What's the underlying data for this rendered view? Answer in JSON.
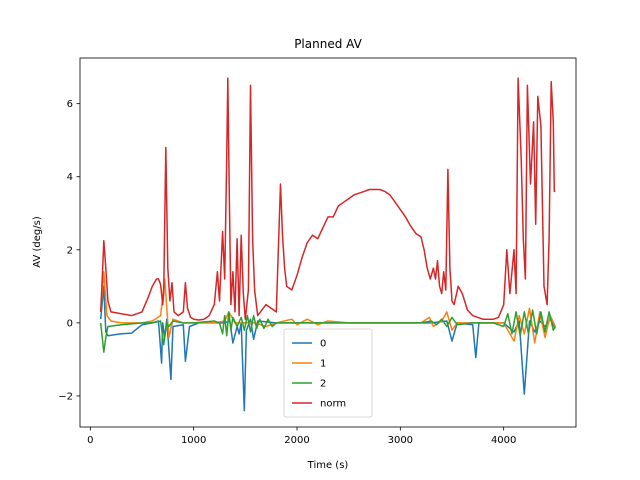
{
  "chart_data": {
    "type": "line",
    "title": "Planned AV",
    "xlabel": "Time (s)",
    "ylabel": "AV (deg/s)",
    "xlim": [
      -100,
      4700
    ],
    "ylim": [
      -2.85,
      7.25
    ],
    "xticks": [
      0,
      1000,
      2000,
      3000,
      4000
    ],
    "yticks": [
      -2,
      0,
      2,
      4,
      6
    ],
    "grid": false,
    "legend_position": "lower center",
    "series": [
      {
        "name": "0",
        "color": "#1f77b4",
        "points": [
          [
            100,
            0.1
          ],
          [
            130,
            1.0
          ],
          [
            150,
            -0.25
          ],
          [
            170,
            -0.35
          ],
          [
            300,
            -0.3
          ],
          [
            400,
            -0.28
          ],
          [
            500,
            -0.05
          ],
          [
            600,
            0.0
          ],
          [
            660,
            0.05
          ],
          [
            690,
            -1.1
          ],
          [
            700,
            0.0
          ],
          [
            720,
            -0.4
          ],
          [
            740,
            0.1
          ],
          [
            780,
            -1.55
          ],
          [
            800,
            -0.1
          ],
          [
            900,
            -0.05
          ],
          [
            920,
            -1.05
          ],
          [
            960,
            -0.1
          ],
          [
            1050,
            0.0
          ],
          [
            1200,
            0.0
          ],
          [
            1300,
            0.0
          ],
          [
            1350,
            0.05
          ],
          [
            1380,
            -0.55
          ],
          [
            1420,
            -0.1
          ],
          [
            1440,
            -0.3
          ],
          [
            1460,
            0.0
          ],
          [
            1490,
            -2.4
          ],
          [
            1510,
            -0.2
          ],
          [
            1550,
            0.1
          ],
          [
            1580,
            -0.45
          ],
          [
            1620,
            0.05
          ],
          [
            1800,
            0.0
          ],
          [
            2000,
            0.0
          ],
          [
            2200,
            0.0
          ],
          [
            2500,
            0.0
          ],
          [
            3000,
            0.0
          ],
          [
            3300,
            0.0
          ],
          [
            3450,
            0.05
          ],
          [
            3500,
            -0.5
          ],
          [
            3550,
            0.0
          ],
          [
            3700,
            -0.05
          ],
          [
            3730,
            -0.95
          ],
          [
            3760,
            0.0
          ],
          [
            4000,
            0.0
          ],
          [
            4100,
            -0.25
          ],
          [
            4150,
            0.05
          ],
          [
            4200,
            -1.95
          ],
          [
            4250,
            0.05
          ],
          [
            4300,
            -0.25
          ],
          [
            4350,
            0.05
          ],
          [
            4400,
            -0.1
          ],
          [
            4450,
            0.1
          ],
          [
            4500,
            -0.15
          ]
        ]
      },
      {
        "name": "1",
        "color": "#ff7f0e",
        "points": [
          [
            100,
            0.3
          ],
          [
            130,
            1.4
          ],
          [
            160,
            0.2
          ],
          [
            200,
            0.05
          ],
          [
            300,
            0.0
          ],
          [
            500,
            0.0
          ],
          [
            600,
            0.05
          ],
          [
            680,
            0.2
          ],
          [
            720,
            1.2
          ],
          [
            760,
            -0.4
          ],
          [
            800,
            0.1
          ],
          [
            900,
            0.0
          ],
          [
            1000,
            0.0
          ],
          [
            1200,
            0.0
          ],
          [
            1300,
            0.05
          ],
          [
            1340,
            0.3
          ],
          [
            1400,
            0.0
          ],
          [
            1600,
            0.0
          ],
          [
            1700,
            -0.1
          ],
          [
            1800,
            0.0
          ],
          [
            1950,
            0.1
          ],
          [
            2000,
            -0.05
          ],
          [
            2100,
            0.1
          ],
          [
            2200,
            -0.05
          ],
          [
            2300,
            0.05
          ],
          [
            2500,
            0.0
          ],
          [
            2700,
            0.0
          ],
          [
            3000,
            0.0
          ],
          [
            3200,
            0.0
          ],
          [
            3280,
            0.15
          ],
          [
            3320,
            -0.1
          ],
          [
            3400,
            0.05
          ],
          [
            3450,
            0.3
          ],
          [
            3500,
            -0.2
          ],
          [
            3550,
            0.0
          ],
          [
            3700,
            0.0
          ],
          [
            4000,
            0.0
          ],
          [
            4100,
            -0.5
          ],
          [
            4150,
            0.2
          ],
          [
            4200,
            -0.3
          ],
          [
            4250,
            0.4
          ],
          [
            4300,
            -0.55
          ],
          [
            4350,
            0.3
          ],
          [
            4400,
            -0.4
          ],
          [
            4450,
            0.2
          ],
          [
            4500,
            -0.1
          ]
        ]
      },
      {
        "name": "2",
        "color": "#2ca02c",
        "points": [
          [
            100,
            0.0
          ],
          [
            130,
            -0.8
          ],
          [
            150,
            -0.4
          ],
          [
            170,
            -0.1
          ],
          [
            300,
            -0.05
          ],
          [
            500,
            0.0
          ],
          [
            600,
            0.0
          ],
          [
            680,
            0.05
          ],
          [
            710,
            -0.6
          ],
          [
            740,
            0.0
          ],
          [
            760,
            -0.1
          ],
          [
            800,
            0.05
          ],
          [
            900,
            0.0
          ],
          [
            1000,
            0.0
          ],
          [
            1200,
            0.05
          ],
          [
            1250,
            0.0
          ],
          [
            1280,
            -0.3
          ],
          [
            1300,
            0.2
          ],
          [
            1320,
            -0.35
          ],
          [
            1340,
            0.3
          ],
          [
            1360,
            -0.2
          ],
          [
            1380,
            0.15
          ],
          [
            1420,
            -0.1
          ],
          [
            1460,
            0.15
          ],
          [
            1490,
            -0.2
          ],
          [
            1520,
            0.2
          ],
          [
            1550,
            -0.25
          ],
          [
            1580,
            0.2
          ],
          [
            1610,
            -0.15
          ],
          [
            1640,
            0.1
          ],
          [
            1680,
            -0.15
          ],
          [
            1720,
            0.1
          ],
          [
            1760,
            -0.1
          ],
          [
            1800,
            0.0
          ],
          [
            1900,
            0.0
          ],
          [
            2000,
            0.0
          ],
          [
            2200,
            0.0
          ],
          [
            2500,
            0.0
          ],
          [
            2800,
            0.0
          ],
          [
            3000,
            0.0
          ],
          [
            3200,
            0.0
          ],
          [
            3300,
            0.05
          ],
          [
            3350,
            -0.05
          ],
          [
            3400,
            0.1
          ],
          [
            3450,
            -0.1
          ],
          [
            3500,
            0.15
          ],
          [
            3550,
            -0.05
          ],
          [
            3700,
            0.0
          ],
          [
            3900,
            0.0
          ],
          [
            4000,
            -0.1
          ],
          [
            4040,
            0.25
          ],
          [
            4080,
            -0.3
          ],
          [
            4120,
            0.3
          ],
          [
            4160,
            -0.35
          ],
          [
            4200,
            0.3
          ],
          [
            4240,
            -0.3
          ],
          [
            4280,
            0.35
          ],
          [
            4320,
            -0.3
          ],
          [
            4360,
            0.3
          ],
          [
            4400,
            -0.25
          ],
          [
            4440,
            0.3
          ],
          [
            4480,
            -0.2
          ],
          [
            4500,
            -0.1
          ]
        ]
      },
      {
        "name": "norm",
        "color": "#d62728",
        "points": [
          [
            100,
            0.3
          ],
          [
            120,
            1.5
          ],
          [
            130,
            2.25
          ],
          [
            150,
            1.5
          ],
          [
            170,
            0.6
          ],
          [
            200,
            0.3
          ],
          [
            300,
            0.25
          ],
          [
            400,
            0.2
          ],
          [
            500,
            0.3
          ],
          [
            560,
            0.7
          ],
          [
            600,
            1.0
          ],
          [
            640,
            1.2
          ],
          [
            660,
            1.2
          ],
          [
            680,
            1.05
          ],
          [
            700,
            0.5
          ],
          [
            710,
            0.8
          ],
          [
            730,
            4.8
          ],
          [
            750,
            1.5
          ],
          [
            770,
            0.6
          ],
          [
            790,
            1.1
          ],
          [
            810,
            0.3
          ],
          [
            850,
            0.2
          ],
          [
            900,
            0.3
          ],
          [
            920,
            1.1
          ],
          [
            940,
            0.4
          ],
          [
            970,
            0.15
          ],
          [
            1000,
            0.1
          ],
          [
            1050,
            0.08
          ],
          [
            1100,
            0.1
          ],
          [
            1150,
            0.2
          ],
          [
            1200,
            0.5
          ],
          [
            1230,
            1.4
          ],
          [
            1250,
            0.6
          ],
          [
            1280,
            2.5
          ],
          [
            1300,
            1.2
          ],
          [
            1320,
            4.5
          ],
          [
            1330,
            6.7
          ],
          [
            1345,
            3.5
          ],
          [
            1360,
            0.5
          ],
          [
            1380,
            1.4
          ],
          [
            1400,
            0.3
          ],
          [
            1420,
            2.3
          ],
          [
            1440,
            0.2
          ],
          [
            1460,
            2.4
          ],
          [
            1480,
            0.8
          ],
          [
            1500,
            0.1
          ],
          [
            1530,
            0.9
          ],
          [
            1550,
            6.5
          ],
          [
            1570,
            2.3
          ],
          [
            1590,
            0.9
          ],
          [
            1620,
            0.2
          ],
          [
            1700,
            0.5
          ],
          [
            1800,
            0.3
          ],
          [
            1840,
            3.8
          ],
          [
            1860,
            2.4
          ],
          [
            1880,
            1.5
          ],
          [
            1900,
            1.0
          ],
          [
            1950,
            0.9
          ],
          [
            2000,
            1.3
          ],
          [
            2050,
            1.8
          ],
          [
            2100,
            2.2
          ],
          [
            2150,
            2.4
          ],
          [
            2200,
            2.3
          ],
          [
            2250,
            2.6
          ],
          [
            2300,
            2.9
          ],
          [
            2350,
            2.9
          ],
          [
            2400,
            3.2
          ],
          [
            2450,
            3.3
          ],
          [
            2500,
            3.4
          ],
          [
            2550,
            3.5
          ],
          [
            2600,
            3.55
          ],
          [
            2650,
            3.6
          ],
          [
            2700,
            3.65
          ],
          [
            2750,
            3.65
          ],
          [
            2800,
            3.65
          ],
          [
            2850,
            3.6
          ],
          [
            2900,
            3.5
          ],
          [
            2950,
            3.3
          ],
          [
            3000,
            3.1
          ],
          [
            3050,
            2.9
          ],
          [
            3100,
            2.65
          ],
          [
            3150,
            2.45
          ],
          [
            3200,
            2.35
          ],
          [
            3230,
            2.0
          ],
          [
            3260,
            1.5
          ],
          [
            3290,
            1.2
          ],
          [
            3320,
            1.5
          ],
          [
            3340,
            1.2
          ],
          [
            3360,
            1.7
          ],
          [
            3380,
            1.0
          ],
          [
            3400,
            0.8
          ],
          [
            3420,
            1.4
          ],
          [
            3440,
            0.9
          ],
          [
            3460,
            4.2
          ],
          [
            3480,
            1.5
          ],
          [
            3500,
            0.6
          ],
          [
            3520,
            0.5
          ],
          [
            3560,
            1.0
          ],
          [
            3600,
            0.8
          ],
          [
            3650,
            0.35
          ],
          [
            3700,
            0.2
          ],
          [
            3750,
            0.15
          ],
          [
            3800,
            0.1
          ],
          [
            3850,
            0.1
          ],
          [
            3900,
            0.1
          ],
          [
            3950,
            0.15
          ],
          [
            4000,
            0.5
          ],
          [
            4030,
            2.0
          ],
          [
            4060,
            0.8
          ],
          [
            4100,
            2.0
          ],
          [
            4120,
            0.8
          ],
          [
            4140,
            6.7
          ],
          [
            4170,
            4.5
          ],
          [
            4190,
            2.3
          ],
          [
            4210,
            1.2
          ],
          [
            4230,
            6.5
          ],
          [
            4260,
            3.8
          ],
          [
            4290,
            5.5
          ],
          [
            4310,
            2.7
          ],
          [
            4330,
            6.2
          ],
          [
            4360,
            5.4
          ],
          [
            4390,
            1.0
          ],
          [
            4420,
            0.5
          ],
          [
            4440,
            2.3
          ],
          [
            4460,
            6.6
          ],
          [
            4480,
            5.5
          ],
          [
            4490,
            3.6
          ],
          [
            4500,
            3.6
          ]
        ]
      }
    ]
  }
}
